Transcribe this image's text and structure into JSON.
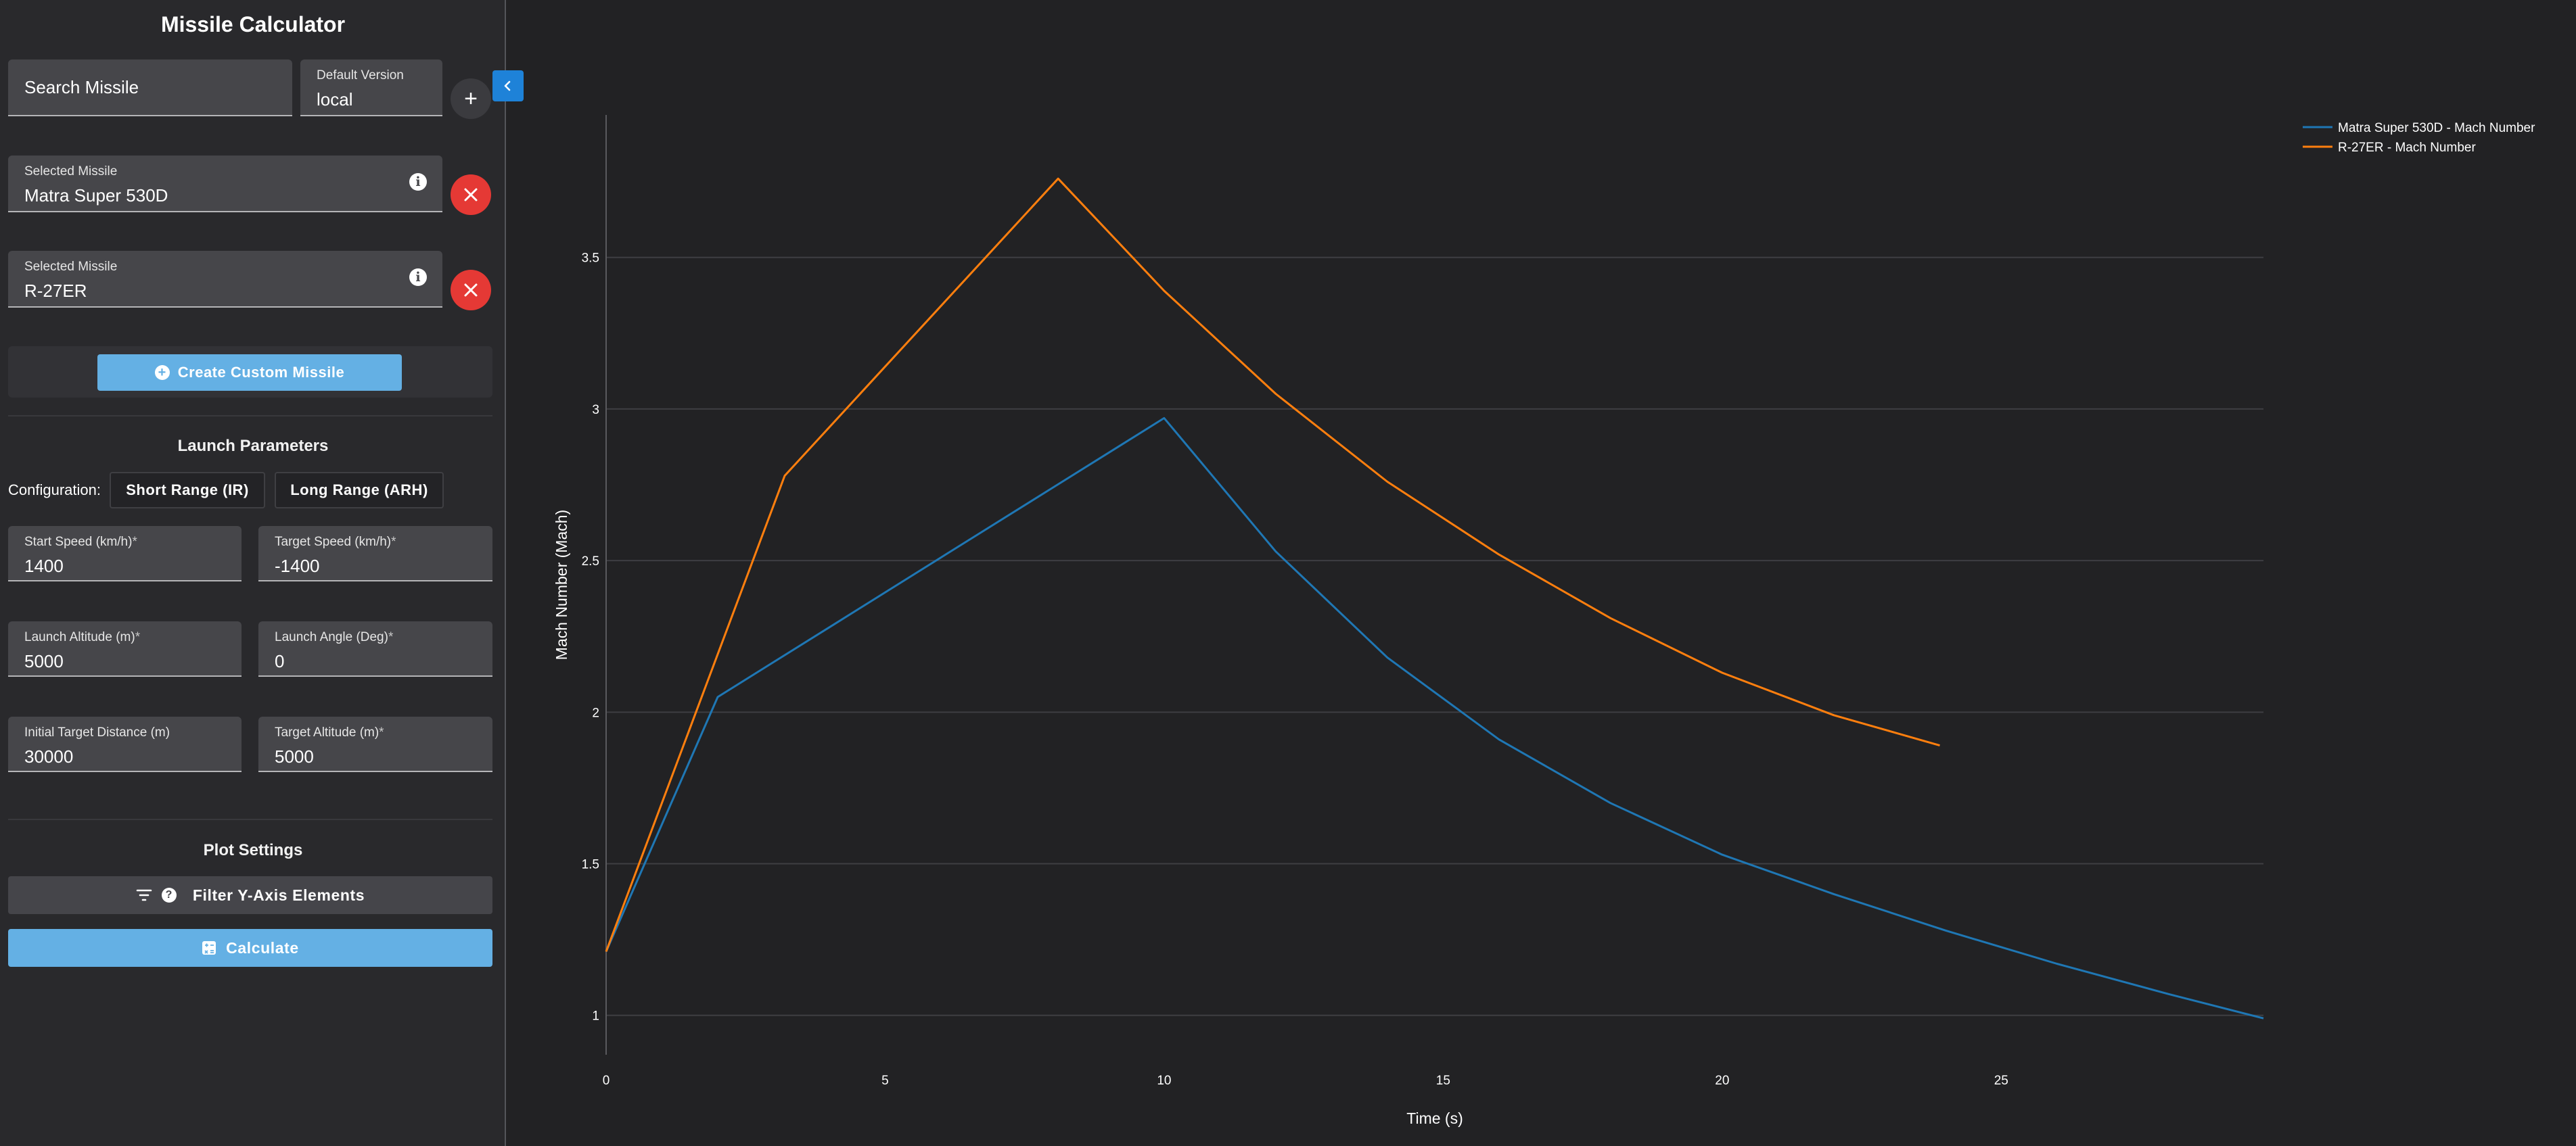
{
  "app": {
    "title": "Missile Calculator"
  },
  "search": {
    "label": "Search Missile",
    "version_label": "Default Version",
    "version_value": "local",
    "add_symbol": "+"
  },
  "selected_missiles": [
    {
      "label": "Selected Missile",
      "value": "Matra Super 530D"
    },
    {
      "label": "Selected Missile",
      "value": "R-27ER"
    }
  ],
  "custom": {
    "label": "Create Custom Missile"
  },
  "launch": {
    "title": "Launch Parameters",
    "config_label": "Configuration:",
    "config_options": [
      "Short Range (IR)",
      "Long Range (ARH)"
    ],
    "fields": [
      {
        "label": "Start Speed (km/h)",
        "required": "*",
        "value": "1400"
      },
      {
        "label": "Target Speed (km/h)",
        "required": "*",
        "value": "-1400"
      },
      {
        "label": "Launch Altitude (m)",
        "required": "*",
        "value": "5000"
      },
      {
        "label": "Launch Angle (Deg)",
        "required": "*",
        "value": "0"
      },
      {
        "label": "Initial Target Distance (m)",
        "required": "",
        "value": "30000"
      },
      {
        "label": "Target Altitude (m)",
        "required": "*",
        "value": "5000"
      }
    ]
  },
  "plot": {
    "title": "Plot Settings",
    "filter_label": "Filter Y-Axis Elements",
    "calc_label": "Calculate"
  },
  "colors": {
    "accent": "#64b0e4",
    "danger": "#e53935",
    "collapse": "#1e82d8",
    "series1": "#1f77b4",
    "series2": "#ff7f0e"
  },
  "icons": [
    "plus-icon",
    "close-icon",
    "info-icon",
    "plus-circle-icon",
    "filter-icon",
    "help-icon",
    "calculator-icon",
    "chevron-left-icon"
  ],
  "chart_data": {
    "type": "line",
    "xlabel": "Time (s)",
    "ylabel": "Mach Number (Mach)",
    "xlim": [
      0,
      29.7
    ],
    "ylim": [
      0.87,
      3.97
    ],
    "xticks": [
      0,
      5,
      10,
      15,
      20,
      25
    ],
    "yticks": [
      1,
      1.5,
      2,
      2.5,
      3,
      3.5
    ],
    "grid": "horizontal",
    "legend_position": "top-right",
    "series": [
      {
        "name": "Matra Super 530D - Mach Number",
        "color": "#1f77b4",
        "x": [
          0,
          2,
          4,
          6,
          8,
          10,
          12,
          14,
          16,
          18,
          20,
          22,
          24,
          26,
          28,
          29.7
        ],
        "y": [
          1.21,
          2.05,
          2.28,
          2.51,
          2.74,
          2.97,
          2.53,
          2.18,
          1.91,
          1.7,
          1.53,
          1.4,
          1.28,
          1.17,
          1.07,
          0.99
        ]
      },
      {
        "name": "R-27ER - Mach Number",
        "color": "#ff7f0e",
        "x": [
          0,
          3.2,
          8.1,
          10,
          12,
          14,
          16,
          18,
          20,
          22,
          23.9
        ],
        "y": [
          1.21,
          2.78,
          3.76,
          3.39,
          3.05,
          2.76,
          2.52,
          2.31,
          2.13,
          1.99,
          1.89
        ]
      }
    ]
  }
}
